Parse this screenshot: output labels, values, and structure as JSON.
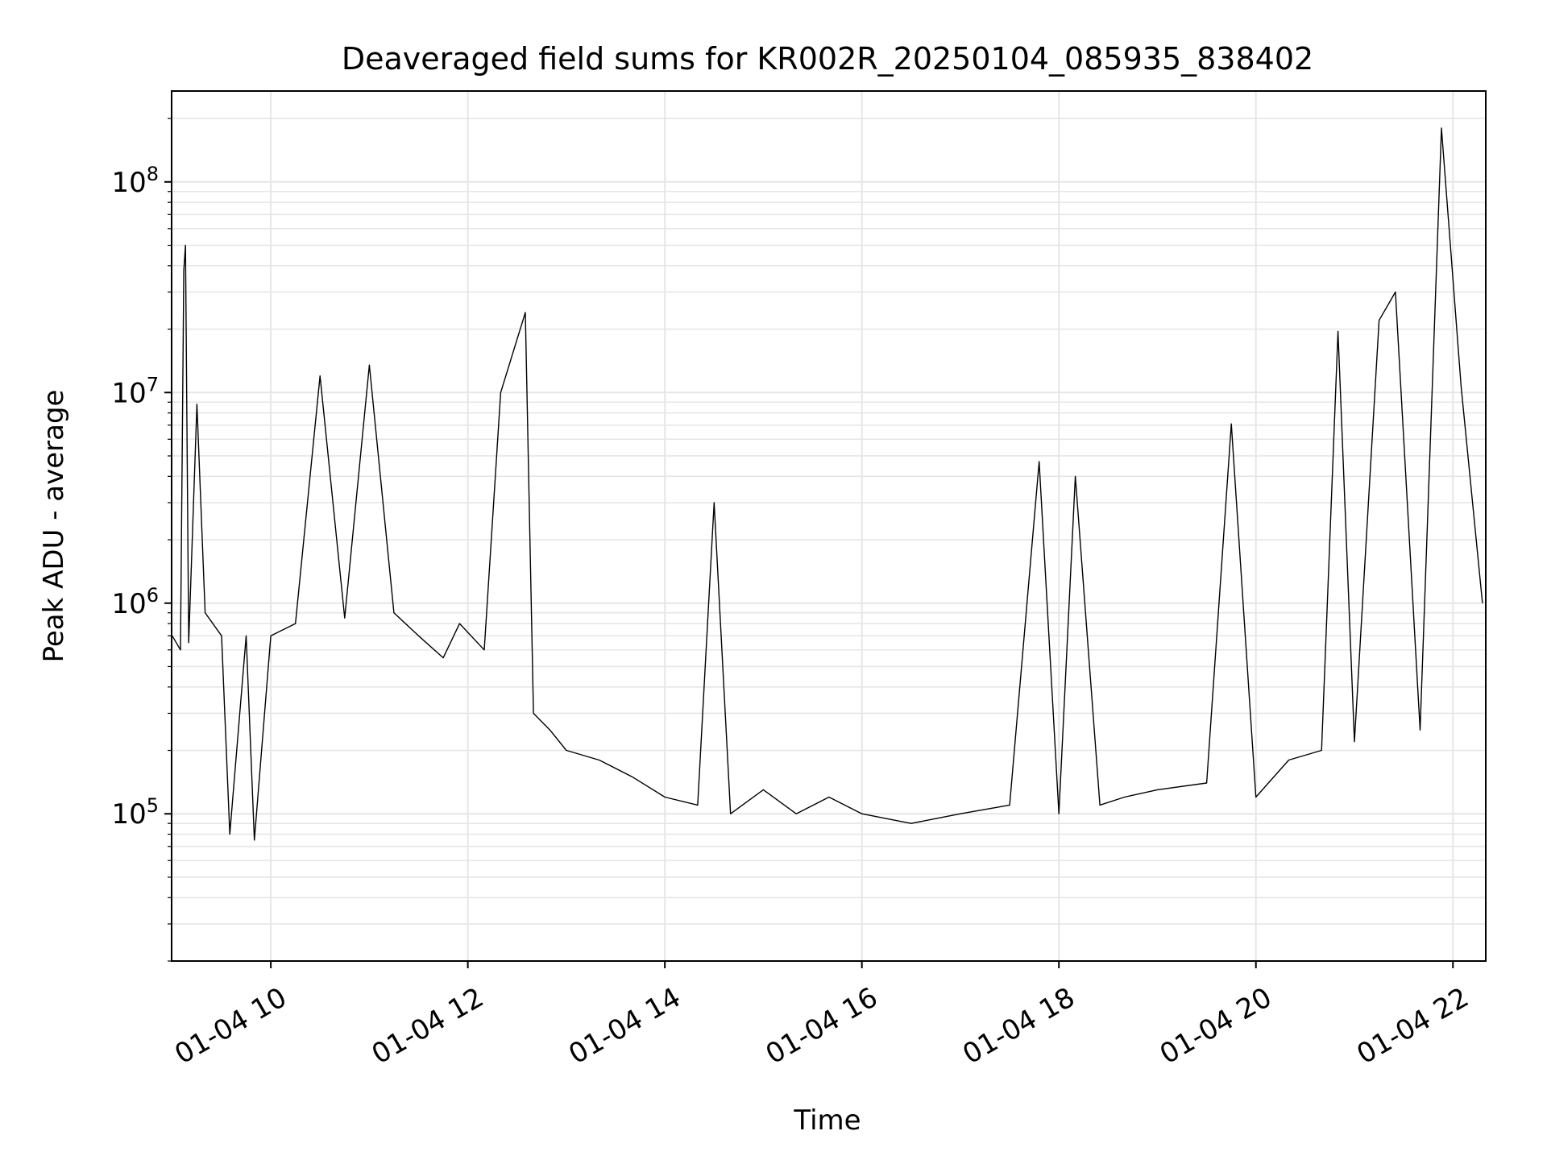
{
  "chart_data": {
    "type": "line",
    "title": "Deaveraged field sums for KR002R_20250104_085935_838402",
    "xlabel": "Time",
    "ylabel": "Peak ADU - average",
    "x_scale": "time",
    "y_scale": "log",
    "xlim": [
      "2025-01-04T08:59:35",
      "2025-01-04T22:20:00"
    ],
    "ylim": [
      20000,
      270000000
    ],
    "x_ticks": [
      {
        "t": "2025-01-04T10:00",
        "label": "01-04 10"
      },
      {
        "t": "2025-01-04T12:00",
        "label": "01-04 12"
      },
      {
        "t": "2025-01-04T14:00",
        "label": "01-04 14"
      },
      {
        "t": "2025-01-04T16:00",
        "label": "01-04 16"
      },
      {
        "t": "2025-01-04T18:00",
        "label": "01-04 18"
      },
      {
        "t": "2025-01-04T20:00",
        "label": "01-04 20"
      },
      {
        "t": "2025-01-04T22:00",
        "label": "01-04 22"
      }
    ],
    "y_ticks": [
      {
        "value": 100000,
        "base": "10",
        "exp": "5"
      },
      {
        "value": 1000000,
        "base": "10",
        "exp": "6"
      },
      {
        "value": 10000000,
        "base": "10",
        "exp": "7"
      },
      {
        "value": 100000000,
        "base": "10",
        "exp": "8"
      }
    ],
    "grid": true,
    "grid_color": "#e6e6e6",
    "line_color": "#000000",
    "series": [
      {
        "x": [
          "2025-01-04T09:00",
          "2025-01-04T09:05",
          "2025-01-04T09:07",
          "2025-01-04T09:08",
          "2025-01-04T09:10",
          "2025-01-04T09:15",
          "2025-01-04T09:20",
          "2025-01-04T09:30",
          "2025-01-04T09:35",
          "2025-01-04T09:45",
          "2025-01-04T09:50",
          "2025-01-04T10:00",
          "2025-01-04T10:15",
          "2025-01-04T10:30",
          "2025-01-04T10:45",
          "2025-01-04T11:00",
          "2025-01-04T11:15",
          "2025-01-04T11:30",
          "2025-01-04T11:45",
          "2025-01-04T11:55",
          "2025-01-04T12:10",
          "2025-01-04T12:20",
          "2025-01-04T12:35",
          "2025-01-04T12:40",
          "2025-01-04T12:50",
          "2025-01-04T13:00",
          "2025-01-04T13:20",
          "2025-01-04T13:40",
          "2025-01-04T14:00",
          "2025-01-04T14:20",
          "2025-01-04T14:30",
          "2025-01-04T14:40",
          "2025-01-04T15:00",
          "2025-01-04T15:20",
          "2025-01-04T15:40",
          "2025-01-04T16:00",
          "2025-01-04T16:30",
          "2025-01-04T17:00",
          "2025-01-04T17:30",
          "2025-01-04T17:48",
          "2025-01-04T18:00",
          "2025-01-04T18:10",
          "2025-01-04T18:25",
          "2025-01-04T18:40",
          "2025-01-04T19:00",
          "2025-01-04T19:30",
          "2025-01-04T19:45",
          "2025-01-04T20:00",
          "2025-01-04T20:20",
          "2025-01-04T20:40",
          "2025-01-04T20:50",
          "2025-01-04T21:00",
          "2025-01-04T21:15",
          "2025-01-04T21:25",
          "2025-01-04T21:40",
          "2025-01-04T21:53",
          "2025-01-04T22:05",
          "2025-01-04T22:18"
        ],
        "y": [
          700000,
          600000,
          38000000,
          50000000,
          650000,
          8800000,
          900000,
          700000,
          80000,
          700000,
          75000,
          700000,
          800000,
          12000000,
          850000,
          13500000,
          900000,
          700000,
          550000,
          800000,
          600000,
          10000000,
          24000000,
          300000,
          250000,
          200000,
          180000,
          150000,
          120000,
          110000,
          3000000,
          100000,
          130000,
          100000,
          120000,
          100000,
          90000,
          100000,
          110000,
          4700000,
          100000,
          4000000,
          110000,
          120000,
          130000,
          140000,
          7100000,
          120000,
          180000,
          200000,
          19500000,
          220000,
          22000000,
          30000000,
          250000,
          180000000,
          10700000,
          1000000
        ]
      }
    ]
  }
}
